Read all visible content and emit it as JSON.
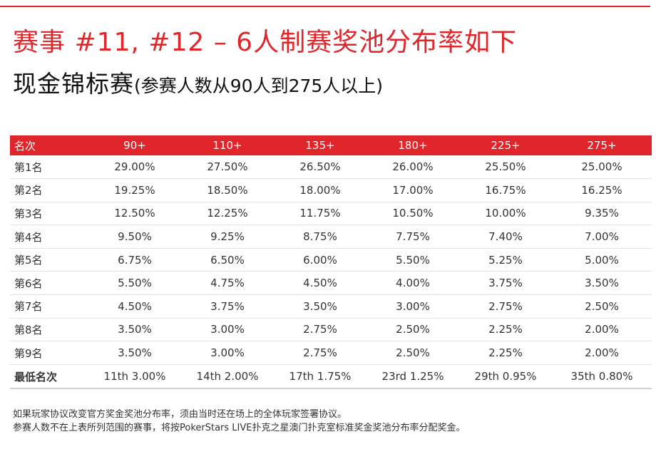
{
  "title": {
    "line1": "赛事 #11, #12 – 6人制赛奖池分布率如下",
    "line2_main": "现金锦标赛",
    "line2_sub": "(参赛人数从90人到275人以上)"
  },
  "table": {
    "corner_label": "名次",
    "columns": [
      "90+",
      "110+",
      "135+",
      "180+",
      "225+",
      "275+"
    ],
    "rows": [
      {
        "label": "第1名",
        "values": [
          "29.00%",
          "27.50%",
          "26.50%",
          "26.00%",
          "25.50%",
          "25.00%"
        ]
      },
      {
        "label": "第2名",
        "values": [
          "19.25%",
          "18.50%",
          "18.00%",
          "17.00%",
          "16.75%",
          "16.25%"
        ]
      },
      {
        "label": "第3名",
        "values": [
          "12.50%",
          "12.25%",
          "11.75%",
          "10.50%",
          "10.00%",
          "9.35%"
        ]
      },
      {
        "label": "第4名",
        "values": [
          "9.50%",
          "9.25%",
          "8.75%",
          "7.75%",
          "7.40%",
          "7.00%"
        ]
      },
      {
        "label": "第5名",
        "values": [
          "6.75%",
          "6.50%",
          "6.00%",
          "5.50%",
          "5.25%",
          "5.00%"
        ]
      },
      {
        "label": "第6名",
        "values": [
          "5.50%",
          "4.75%",
          "4.50%",
          "4.00%",
          "3.75%",
          "3.50%"
        ]
      },
      {
        "label": "第7名",
        "values": [
          "4.50%",
          "3.75%",
          "3.50%",
          "3.00%",
          "2.75%",
          "2.50%"
        ]
      },
      {
        "label": "第8名",
        "values": [
          "3.50%",
          "3.00%",
          "2.75%",
          "2.50%",
          "2.25%",
          "2.00%"
        ]
      },
      {
        "label": "第9名",
        "values": [
          "3.50%",
          "3.00%",
          "2.75%",
          "2.50%",
          "2.25%",
          "2.00%"
        ]
      }
    ],
    "min_row": {
      "label": "最低名次",
      "values": [
        "11th 3.00%",
        "14th 2.00%",
        "17th 1.75%",
        "23rd 1.25%",
        "29th 0.95%",
        "35th 0.80%"
      ]
    }
  },
  "notes": [
    "如果玩家协议改变官方奖金奖池分布率，须由当时还在场上的全体玩家签署协议。",
    "参赛人数不在上表所列范围的赛事，将按PokerStars LIVE扑克之星澳门扑克室标准奖金奖池分布率分配奖金。"
  ],
  "colors": {
    "accent": "#e0262b"
  }
}
